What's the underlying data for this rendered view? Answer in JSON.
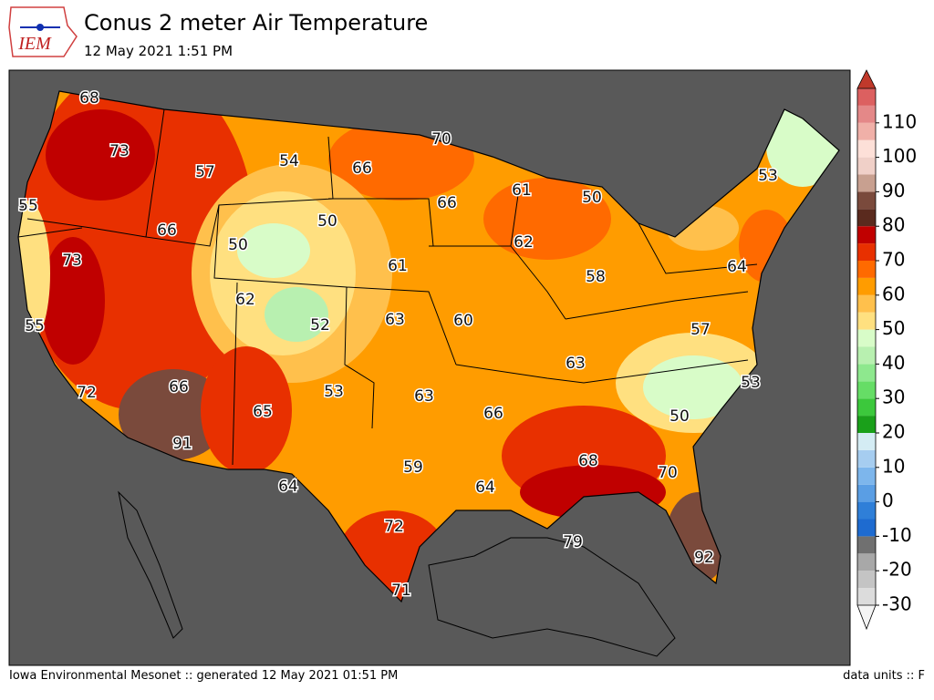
{
  "header": {
    "logo": "IEM",
    "title": "Conus 2 meter Air Temperature",
    "subtitle": "12 May 2021 1:51 PM"
  },
  "colorbar": {
    "ticks": [
      -30,
      -20,
      -10,
      0,
      10,
      20,
      30,
      40,
      50,
      60,
      70,
      80,
      90,
      100,
      110
    ],
    "colors": [
      "#dcdcdc",
      "#c4c4c4",
      "#a8a8a8",
      "#707070",
      "#1e6bd0",
      "#2f7fd8",
      "#5a9ee4",
      "#7db6ec",
      "#a6cdf0",
      "#d4ecf4",
      "#1aa01a",
      "#3cc83c",
      "#66dd66",
      "#8ee88e",
      "#b8f0b0",
      "#d8fcc8",
      "#ffe080",
      "#ffc04c",
      "#ff9c00",
      "#ff6a00",
      "#e83000",
      "#c00000",
      "#5a2a1e",
      "#7a4a3c",
      "#c8a090",
      "#f0d0c8",
      "#fde0d8",
      "#f0b0a8",
      "#e48888",
      "#dc6060"
    ],
    "under_color": "#f4f4f4",
    "over_color": "#c0392b"
  },
  "map": {
    "labels": [
      68,
      73,
      57,
      54,
      66,
      70,
      66,
      61,
      50,
      53,
      55,
      66,
      50,
      50,
      62,
      73,
      61,
      64,
      58,
      62,
      52,
      63,
      60,
      55,
      57,
      63,
      53,
      66,
      53,
      63,
      72,
      65,
      66,
      50,
      91,
      59,
      68,
      70,
      64,
      64,
      72,
      79,
      92,
      71
    ]
  },
  "footer": {
    "left": "Iowa Environmental Mesonet :: generated 12 May 2021 01:51 PM",
    "right": "data units :: F"
  }
}
